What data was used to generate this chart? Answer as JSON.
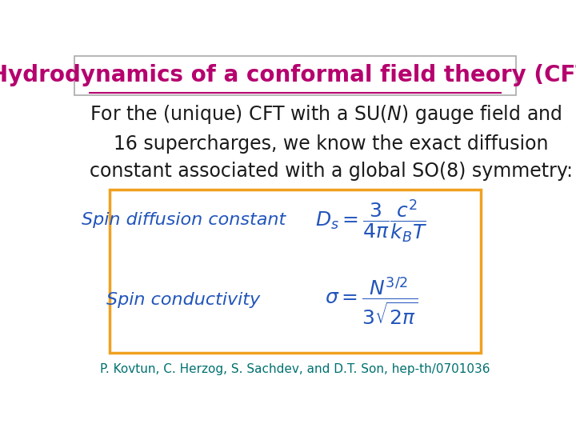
{
  "title": "Hydrodynamics of a conformal field theory (CFT)",
  "title_color": "#b5006e",
  "title_fontsize": 20,
  "body_color": "#1a1a1a",
  "body_fontsize": 17,
  "box_edge_color": "#f0a020",
  "box_face_color": "#ffffff",
  "label1": "Spin diffusion constant",
  "label2": "Spin conductivity",
  "label_color": "#2255bb",
  "label_fontsize": 16,
  "formula1": "$D_s = \\dfrac{3}{4\\pi} \\dfrac{c^2}{k_B T}$",
  "formula2": "$\\sigma = \\dfrac{N^{3/2}}{3\\sqrt{2\\pi}}$",
  "formula_color": "#2255bb",
  "formula_fontsize": 18,
  "citation": "P. Kovtun, C. Herzog, S. Sachdev, and D.T. Son, hep-th/0701036",
  "citation_color": "#007070",
  "citation_fontsize": 11,
  "bg_color": "#ffffff",
  "title_underline_color": "#b5006e",
  "box_border_color": "#aaaaaa"
}
